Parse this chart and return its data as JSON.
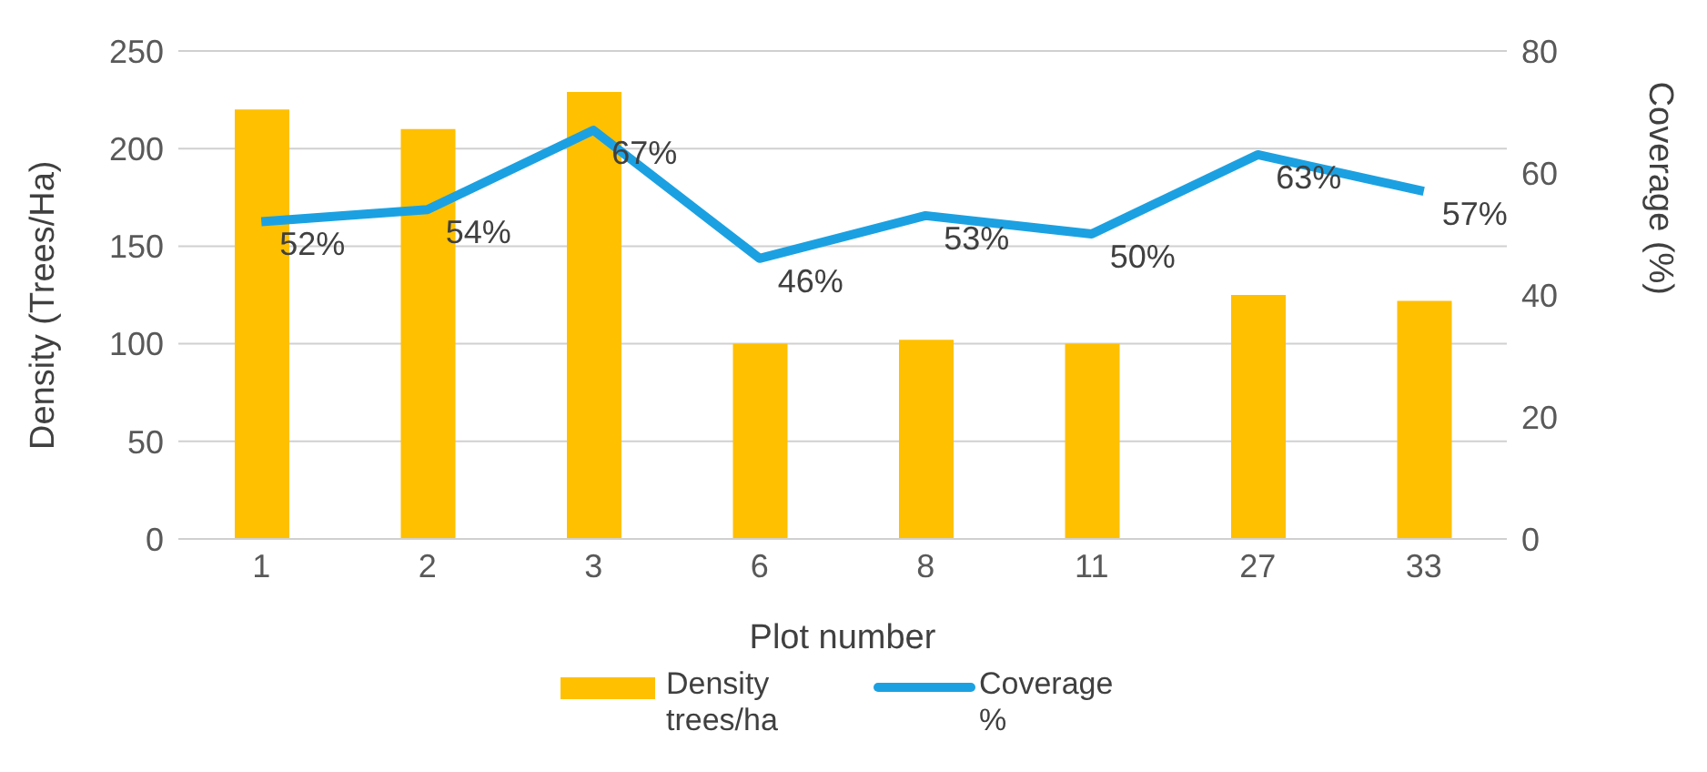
{
  "chart_data": {
    "type": "bar",
    "xlabel": "Plot number",
    "ylabel": "Density (Trees/Ha)",
    "y2label": "Coverage (%)",
    "categories": [
      "1",
      "2",
      "3",
      "6",
      "8",
      "11",
      "27",
      "33"
    ],
    "series": [
      {
        "name": "Density trees/ha",
        "color": "#ffc000",
        "values": [
          220,
          210,
          229,
          100,
          102,
          100,
          125,
          122
        ]
      },
      {
        "name": "Coverage %",
        "type": "line",
        "axis": "y2",
        "color": "#1ba1e2",
        "values": [
          52,
          54,
          67,
          46,
          53,
          50,
          63,
          57
        ],
        "value_labels": [
          "52%",
          "54%",
          "67%",
          "46%",
          "53%",
          "50%",
          "63%",
          "57%"
        ]
      }
    ],
    "ylim": [
      0,
      250
    ],
    "yticks": [
      0,
      50,
      100,
      150,
      200,
      250
    ],
    "y2lim": [
      0,
      80
    ],
    "y2ticks": [
      0,
      20,
      40,
      60,
      80
    ],
    "grid": "y",
    "legend": "bottom",
    "marker": "none",
    "line_style": "solid"
  }
}
